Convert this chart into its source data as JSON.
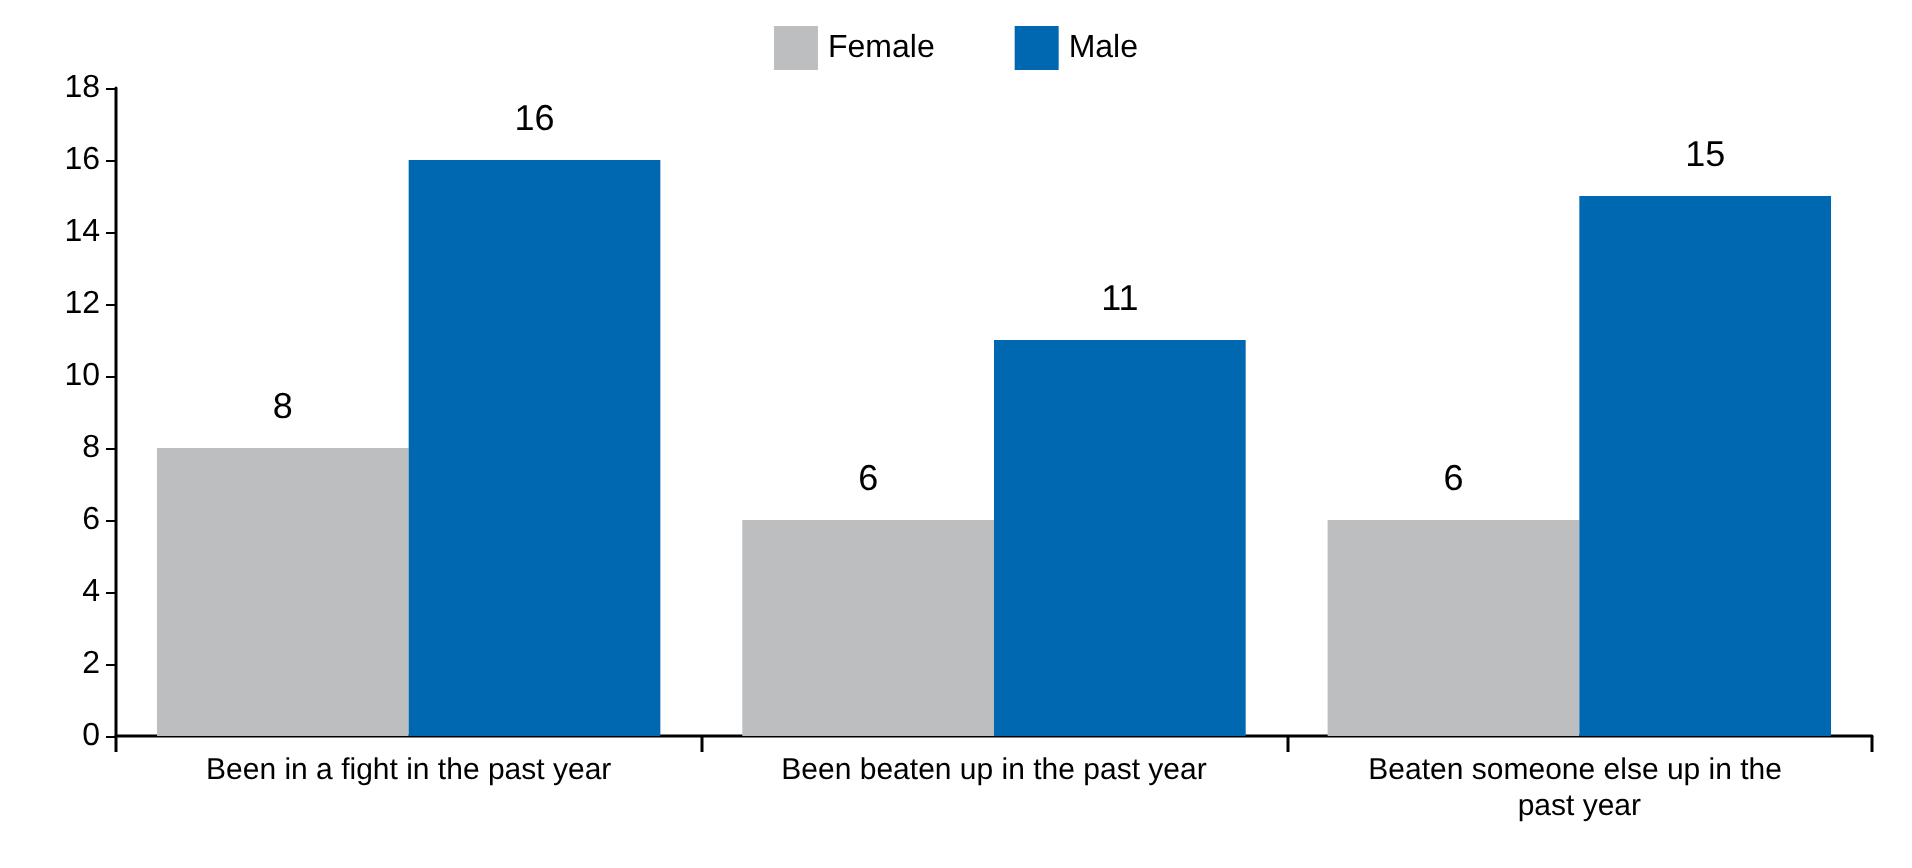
{
  "chart_data": {
    "type": "bar",
    "categories": [
      "Been in a fight in the past year",
      "Been beaten up in the past year",
      "Beaten someone else up in the past year"
    ],
    "series": [
      {
        "name": "Female",
        "color": "#bcbec0",
        "values": [
          8,
          6,
          6
        ]
      },
      {
        "name": "Male",
        "color": "#0068b1",
        "values": [
          16,
          11,
          15
        ]
      }
    ],
    "ylim": [
      0,
      18
    ],
    "yticks": [
      0,
      2,
      4,
      6,
      8,
      10,
      12,
      14,
      16,
      18
    ],
    "grid": false,
    "legend": "top",
    "data_labels": true
  }
}
